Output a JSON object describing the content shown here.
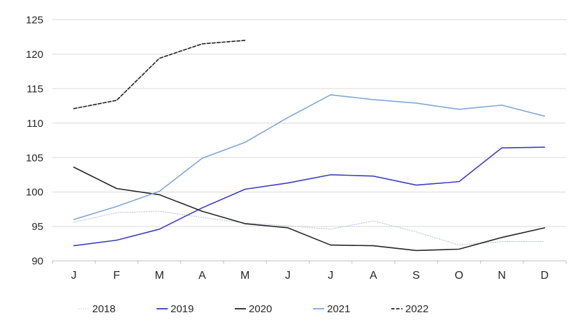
{
  "chart_data": {
    "type": "line",
    "title": "",
    "xlabel": "",
    "ylabel": "",
    "ylim": [
      90,
      125
    ],
    "y_ticks": [
      90,
      95,
      100,
      105,
      110,
      115,
      120,
      125
    ],
    "grid": true,
    "legend_position": "bottom",
    "categories": [
      "J",
      "F",
      "M",
      "A",
      "M",
      "J",
      "J",
      "A",
      "S",
      "O",
      "N",
      "D"
    ],
    "series": [
      {
        "name": "2018",
        "color": "#bccbe6",
        "style": "dotted",
        "values": [
          95.6,
          97.0,
          97.2,
          96.3,
          95.5,
          95.1,
          94.6,
          95.8,
          94.2,
          92.3,
          92.8,
          92.8
        ]
      },
      {
        "name": "2019",
        "color": "#3a3ec2",
        "style": "solid",
        "values": [
          92.2,
          93.0,
          94.6,
          97.7,
          100.4,
          101.3,
          102.5,
          102.3,
          101.0,
          101.5,
          106.4,
          106.5
        ]
      },
      {
        "name": "2020",
        "color": "#262626",
        "style": "solid",
        "values": [
          103.6,
          100.5,
          99.6,
          97.2,
          95.4,
          94.8,
          92.3,
          92.2,
          91.5,
          91.7,
          93.4,
          94.8
        ]
      },
      {
        "name": "2021",
        "color": "#7ea6d8",
        "style": "solid",
        "values": [
          96.0,
          97.9,
          100.1,
          104.9,
          107.2,
          110.8,
          114.1,
          113.4,
          112.9,
          112.0,
          112.6,
          111.0
        ]
      },
      {
        "name": "2022",
        "color": "#1f1f1f",
        "style": "dashed",
        "values": [
          112.1,
          113.3,
          119.4,
          121.5,
          122.0
        ]
      }
    ],
    "axis_colors": {
      "gridline": "#d9d9d9",
      "axis": "#bfbfbf"
    }
  }
}
